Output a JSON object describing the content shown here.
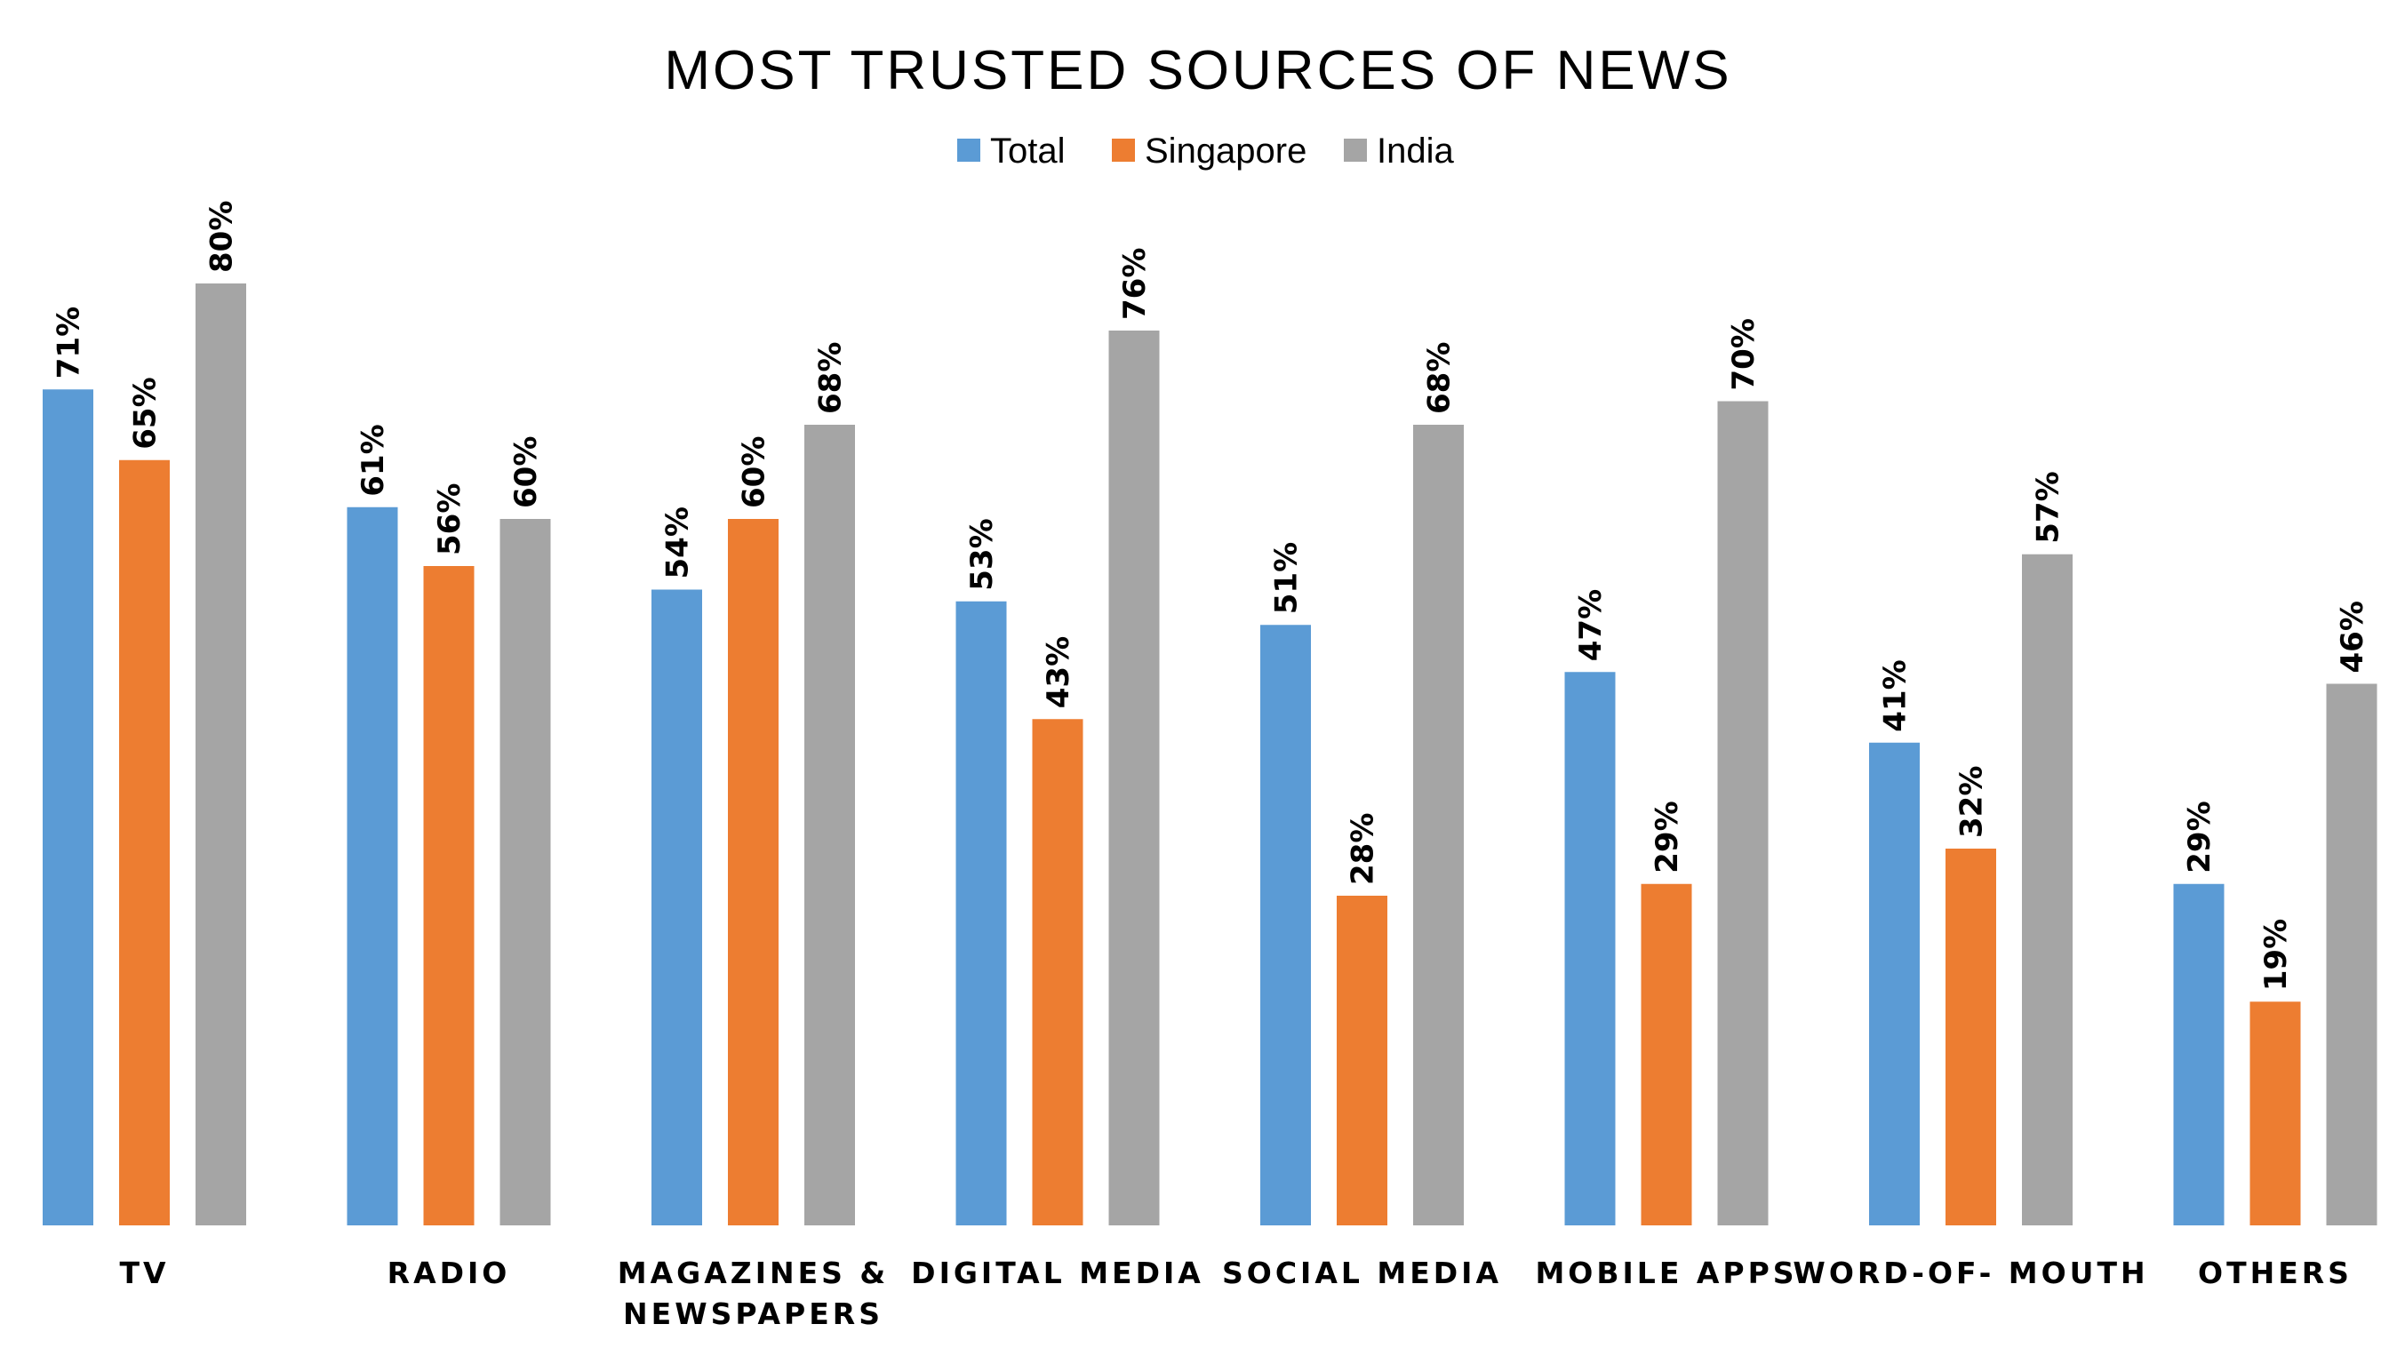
{
  "chart_data": {
    "type": "bar",
    "title": "MOST TRUSTED SOURCES OF NEWS",
    "categories": [
      [
        "TV"
      ],
      [
        "RADIO"
      ],
      [
        "MAGAZINES &",
        "NEWSPAPERS"
      ],
      [
        "DIGITAL MEDIA"
      ],
      [
        "SOCIAL MEDIA"
      ],
      [
        "MOBILE APPS"
      ],
      [
        "WORD-OF- MOUTH"
      ],
      [
        "OTHERS"
      ]
    ],
    "series": [
      {
        "name": "Total",
        "color": "#5B9BD5",
        "values": [
          71,
          61,
          54,
          53,
          51,
          47,
          41,
          29
        ],
        "labels": [
          "71%",
          "61%",
          "54%",
          "53%",
          "51%",
          "47%",
          "41%",
          "29%"
        ]
      },
      {
        "name": "Singapore",
        "color": "#ED7D31",
        "values": [
          65,
          56,
          60,
          43,
          28,
          29,
          32,
          19
        ],
        "labels": [
          "65%",
          "56%",
          "60%",
          "43%",
          "28%",
          "29%",
          "32%",
          "19%"
        ]
      },
      {
        "name": "India",
        "color": "#A5A5A5",
        "values": [
          80,
          60,
          68,
          76,
          68,
          70,
          57,
          46
        ],
        "labels": [
          "80%",
          "60%",
          "68%",
          "76%",
          "68%",
          "70%",
          "57%",
          "46%"
        ]
      }
    ],
    "ylim": [
      0,
      100
    ],
    "grid": false,
    "legend_position": "top-center",
    "xlabel": "",
    "ylabel": ""
  }
}
